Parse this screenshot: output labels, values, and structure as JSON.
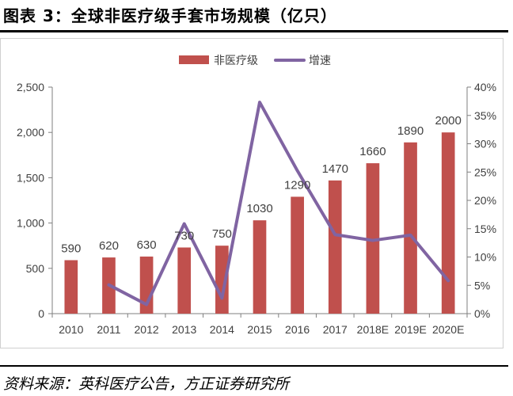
{
  "header": {
    "title": "图表 3：全球非医疗级手套市场规模（亿只）"
  },
  "footer": {
    "source": "资料来源：英科医疗公告，方正证券研究所"
  },
  "chart_data": {
    "type": "bar",
    "categories": [
      "2010",
      "2011",
      "2012",
      "2013",
      "2014",
      "2015",
      "2016",
      "2017",
      "2018E",
      "2019E",
      "2020E"
    ],
    "series": [
      {
        "name": "非医疗级",
        "type": "bar",
        "axis": "left",
        "color": "#c0504d",
        "values": [
          590,
          620,
          630,
          730,
          750,
          1030,
          1290,
          1470,
          1660,
          1890,
          2000
        ],
        "labels": [
          "590",
          "620",
          "630",
          "730",
          "750",
          "1030",
          "1290",
          "1470",
          "1660",
          "1890",
          "2000"
        ]
      },
      {
        "name": "增速",
        "type": "line",
        "axis": "right",
        "color": "#8064a2",
        "values": [
          null,
          5.08,
          1.61,
          15.87,
          2.74,
          37.33,
          25.24,
          13.95,
          12.93,
          13.86,
          5.82
        ]
      }
    ],
    "y_left": {
      "ylim": [
        0,
        2500
      ],
      "ticks": [
        0,
        500,
        1000,
        1500,
        2000,
        2500
      ],
      "tick_labels": [
        "0",
        "500",
        "1,000",
        "1,500",
        "2,000",
        "2,500"
      ]
    },
    "y_right": {
      "ylim": [
        0,
        40
      ],
      "ticks": [
        0,
        5,
        10,
        15,
        20,
        25,
        30,
        35,
        40
      ],
      "tick_labels": [
        "0%",
        "5%",
        "10%",
        "15%",
        "20%",
        "25%",
        "30%",
        "35%",
        "40%"
      ]
    },
    "legend": {
      "position": "top-center"
    },
    "grid": false
  }
}
